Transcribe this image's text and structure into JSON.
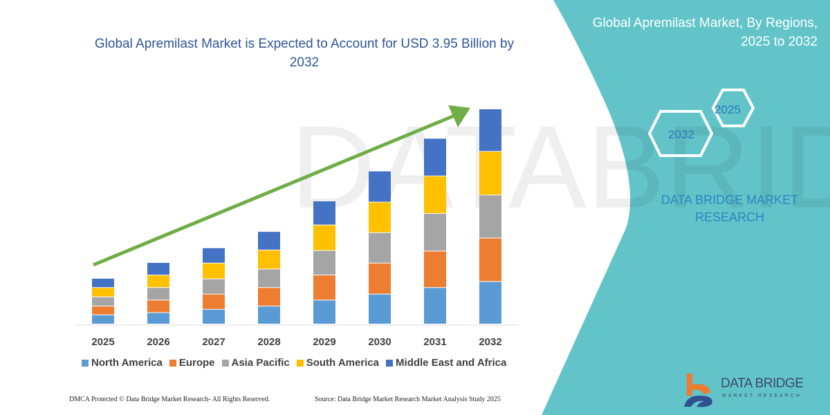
{
  "header": {
    "title": "Global Apremilast Market is Expected to Account for USD 3.95 Billion by 2032",
    "side_title": "Global Apremilast Market, By Regions, 2025 to 2032",
    "hex_labels": [
      "2025",
      "2032"
    ],
    "brand_text": "DATA BRIDGE MARKET RESEARCH"
  },
  "footer": {
    "dmca": "DMCA Protected © Data Bridge Market Research-  All Rights Reserved.",
    "source": "Source: Data Bridge Market Research  Market Analysis Study 2025"
  },
  "logo": {
    "name": "DATA BRIDGE",
    "sub": "MARKET RESEARCH"
  },
  "colors": {
    "teal_panel": "#62c4c9",
    "arrow": "#70ad47",
    "title_blue": "#2f5597"
  },
  "chart_data": {
    "type": "bar",
    "stacked": true,
    "title": "Global Apremilast Market is Expected to Account for USD 3.95 Billion by 2032",
    "xlabel": "",
    "ylabel": "",
    "grid": false,
    "legend_position": "bottom",
    "categories": [
      "2025",
      "2026",
      "2027",
      "2028",
      "2029",
      "2030",
      "2031",
      "2032"
    ],
    "series": [
      {
        "name": "North America",
        "color": "#5b9bd5",
        "values": [
          0.17,
          0.21,
          0.27,
          0.33,
          0.44,
          0.55,
          0.67,
          0.78
        ]
      },
      {
        "name": "Europe",
        "color": "#ed7d31",
        "values": [
          0.16,
          0.23,
          0.28,
          0.34,
          0.46,
          0.57,
          0.67,
          0.8
        ]
      },
      {
        "name": "Asia Pacific",
        "color": "#a5a5a5",
        "values": [
          0.17,
          0.23,
          0.28,
          0.34,
          0.45,
          0.56,
          0.69,
          0.79
        ]
      },
      {
        "name": "South America",
        "color": "#ffc000",
        "values": [
          0.17,
          0.23,
          0.29,
          0.35,
          0.47,
          0.56,
          0.69,
          0.8
        ]
      },
      {
        "name": "Middle East and Africa",
        "color": "#4472c4",
        "values": [
          0.17,
          0.23,
          0.28,
          0.34,
          0.44,
          0.57,
          0.69,
          0.78
        ]
      }
    ]
  }
}
